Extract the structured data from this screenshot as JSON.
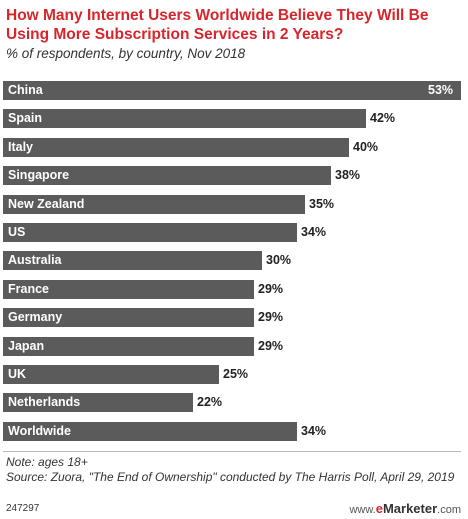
{
  "chart_data": {
    "type": "bar",
    "orientation": "horizontal",
    "title": "How Many Internet Users Worldwide Believe They Will Be Using More Subscription Services in 2 Years?",
    "subtitle": "% of respondents, by country, Nov 2018",
    "categories": [
      "China",
      "Spain",
      "Italy",
      "Singapore",
      "New Zealand",
      "US",
      "Australia",
      "France",
      "Germany",
      "Japan",
      "UK",
      "Netherlands",
      "Worldwide"
    ],
    "values": [
      53,
      42,
      40,
      38,
      35,
      34,
      30,
      29,
      29,
      29,
      25,
      22,
      34
    ],
    "value_labels": [
      "53%",
      "42%",
      "40%",
      "38%",
      "35%",
      "34%",
      "30%",
      "29%",
      "29%",
      "29%",
      "25%",
      "22%",
      "34%"
    ],
    "xlim": [
      0,
      53
    ],
    "grid": false,
    "legend": "none",
    "bar_color": "#5b5b5b",
    "title_color": "#d7262b"
  },
  "note": "Note: ages 18+\nSource: Zuora, \"The End of Ownership\" conducted by The Harris Poll, April 29, 2019",
  "footer": {
    "chart_id": "247297",
    "brand_prefix": "www.",
    "brand_accent": "e",
    "brand_main": "Marketer",
    "brand_suffix": ".com"
  }
}
